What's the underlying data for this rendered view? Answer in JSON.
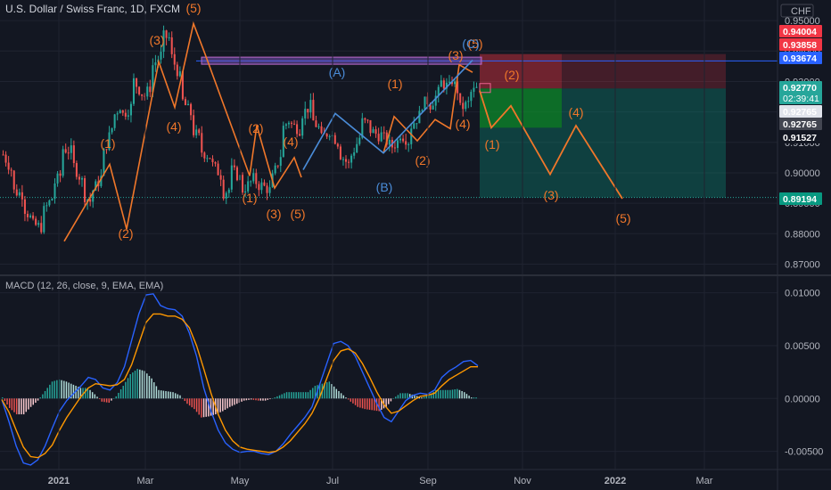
{
  "header": {
    "title": "U.S. Dollar / Swiss Franc, 1D, FXCM",
    "macd_title": "MACD (12, 26, close, 9, EMA, EMA)",
    "currency": "CHF"
  },
  "chart_data": [
    {
      "type": "candlestick",
      "title": "U.S. Dollar / Swiss Franc, 1D, FXCM",
      "ylim": [
        0.8675,
        0.9515
      ],
      "y_ticks": [
        "0.87000",
        "0.88000",
        "0.89000",
        "0.90000",
        "0.91000",
        "0.92000",
        "0.93000",
        "0.94000",
        "0.95000"
      ],
      "x_ticks": [
        "2021",
        "Mar",
        "May",
        "Jul",
        "Sep",
        "Nov",
        "2022",
        "Mar"
      ],
      "price_labels": [
        {
          "value": 0.94004,
          "text": "0.94004",
          "color": "#f23645"
        },
        {
          "value": 0.93858,
          "text": "0.93858",
          "color": "#f23645"
        },
        {
          "value": 0.93674,
          "text": "0.93674",
          "color": "#2962ff"
        },
        {
          "value": 0.9277,
          "text": "0.92770",
          "subtext": "02:39:41",
          "color": "#26a69a"
        },
        {
          "value": 0.92765,
          "text": "0.92765",
          "color": "#e0e3eb",
          "text_color": "#131722"
        },
        {
          "value": 0.92765,
          "text": "0.92765",
          "color": "#434651"
        },
        {
          "value": 0.91527,
          "text": "0.91527",
          "color": "#131722"
        },
        {
          "value": 0.89194,
          "text": "0.89194",
          "color": "#089981"
        }
      ],
      "price_path": [
        [
          0.906,
          0.9
        ],
        [
          0.894,
          0.893
        ],
        [
          0.889,
          0.884
        ],
        [
          0.883,
          0.882
        ],
        [
          0.887,
          0.892
        ],
        [
          0.896,
          0.9
        ],
        [
          0.908,
          0.907
        ],
        [
          0.903,
          0.897
        ],
        [
          0.893,
          0.89
        ],
        [
          0.894,
          0.899
        ],
        [
          0.905,
          0.915
        ],
        [
          0.918,
          0.923
        ],
        [
          0.919,
          0.922
        ],
        [
          0.931,
          0.926
        ],
        [
          0.924,
          0.929
        ],
        [
          0.935,
          0.939
        ],
        [
          0.945,
          0.944
        ],
        [
          0.938,
          0.93
        ],
        [
          0.924,
          0.919
        ],
        [
          0.914,
          0.911
        ],
        [
          0.907,
          0.905
        ],
        [
          0.903,
          0.899
        ],
        [
          0.893,
          0.895
        ],
        [
          0.901,
          0.898
        ],
        [
          0.894,
          0.897
        ],
        [
          0.899,
          0.895
        ],
        [
          0.896,
          0.894
        ],
        [
          0.897,
          0.906
        ],
        [
          0.914,
          0.918
        ],
        [
          0.916,
          0.914
        ],
        [
          0.919,
          0.922
        ],
        [
          0.918,
          0.914
        ],
        [
          0.911,
          0.914
        ],
        [
          0.913,
          0.909
        ],
        [
          0.906,
          0.902
        ],
        [
          0.905,
          0.912
        ],
        [
          0.917,
          0.916
        ],
        [
          0.914,
          0.912
        ],
        [
          0.913,
          0.909
        ],
        [
          0.908,
          0.911
        ],
        [
          0.913,
          0.91
        ],
        [
          0.915,
          0.919
        ],
        [
          0.922,
          0.924
        ],
        [
          0.922,
          0.927
        ],
        [
          0.93,
          0.928
        ],
        [
          0.932,
          0.926
        ],
        [
          0.921,
          0.923
        ],
        [
          0.926,
          0.928
        ]
      ],
      "wave_lines": {
        "orange": [
          [
            0.8775,
            0.9028
          ],
          [
            0.8815,
            0.9028
          ],
          [
            0.9365,
            0.9215
          ],
          [
            0.949,
            0.939
          ],
          [
            0.899,
            0.9155
          ],
          [
            0.895,
            0.905
          ],
          [
            0.9065,
            0.9185
          ],
          [
            0.9145,
            0.9175
          ]
        ]
      },
      "projection": {
        "labels": [
          "(1)",
          "(2)",
          "(3)",
          "(4)",
          "(5)"
        ],
        "values": [
          0.9148,
          0.922,
          0.8995,
          0.9155,
          0.8915
        ]
      },
      "zones": {
        "stop": {
          "from": 0.9277,
          "to": 0.939,
          "color": "#f23645"
        },
        "target": {
          "from": 0.8919,
          "to": 0.9277,
          "color": "#089981"
        },
        "resistance": {
          "from": 0.9368,
          "to": 0.938,
          "color": "#7e57c2"
        }
      },
      "annotations": {
        "orange": [
          "(5)",
          "(3)",
          "(4)",
          "(1)",
          "(2)",
          "(2)",
          "(1)",
          "(3)",
          "(5)",
          "(4)",
          "(1)",
          "(2)",
          "(3)",
          "(4)",
          "(5)"
        ],
        "blue": [
          "(A)",
          "(B)",
          "(C)"
        ]
      }
    },
    {
      "type": "line",
      "title": "MACD (12, 26, close, 9, EMA, EMA)",
      "ylim": [
        -0.0063,
        0.0109
      ],
      "y_ticks": [
        "0.01000",
        "0.00500",
        "0.00000",
        "-0.00500"
      ],
      "series": [
        {
          "color": "#2962ff",
          "values": [
            -0.0001,
            -0.0022,
            -0.0045,
            -0.0061,
            -0.0063,
            -0.0058,
            -0.0045,
            -0.0028,
            -0.0012,
            -0.0002,
            0.0005,
            0.0012,
            0.002,
            0.0018,
            0.001,
            0.0008,
            0.0015,
            0.003,
            0.0055,
            0.008,
            0.0098,
            0.0099,
            0.0088,
            0.0085,
            0.0084,
            0.0078,
            0.0062,
            0.004,
            0.001,
            -0.0012,
            -0.003,
            -0.0042,
            -0.0048,
            -0.0051,
            -0.005,
            -0.005,
            -0.0052,
            -0.0053,
            -0.005,
            -0.0043,
            -0.0034,
            -0.0026,
            -0.0018,
            -0.0008,
            0.0012,
            0.0032,
            0.0052,
            0.0054,
            0.005,
            0.004,
            0.0025,
            0.001,
            -0.0005,
            -0.0018,
            -0.0022,
            -0.0012,
            -0.0002,
            0.0003,
            0.0005,
            0.0004,
            0.0008,
            0.002,
            0.0026,
            0.003,
            0.0035,
            0.0036,
            0.0031
          ]
        },
        {
          "color": "#ff9800",
          "values": [
            -0.0001,
            -0.0013,
            -0.003,
            -0.0046,
            -0.0055,
            -0.0056,
            -0.0052,
            -0.0044,
            -0.003,
            -0.0018,
            -0.0008,
            0.0002,
            0.001,
            0.0014,
            0.0013,
            0.0012,
            0.0013,
            0.0018,
            0.0032,
            0.0052,
            0.0072,
            0.008,
            0.008,
            0.0078,
            0.0078,
            0.0075,
            0.0067,
            0.005,
            0.0028,
            0.0005,
            -0.0015,
            -0.003,
            -0.004,
            -0.0046,
            -0.0048,
            -0.0049,
            -0.005,
            -0.0051,
            -0.005,
            -0.0046,
            -0.004,
            -0.0032,
            -0.0024,
            -0.0014,
            0.0,
            0.0018,
            0.0036,
            0.0045,
            0.0047,
            0.0043,
            0.0033,
            0.002,
            0.0006,
            -0.0006,
            -0.0014,
            -0.0012,
            -0.0007,
            -0.0002,
            0.0002,
            0.0003,
            0.0005,
            0.0012,
            0.0018,
            0.0022,
            0.0026,
            0.003,
            0.003
          ]
        }
      ],
      "histogram": [
        0.0001,
        -0.0009,
        -0.0015,
        -0.0015,
        -0.0008,
        -0.0002,
        0.0007,
        0.0016,
        0.0018,
        0.0016,
        0.0013,
        0.001,
        0.001,
        0.0004,
        -0.0003,
        -0.0004,
        0.0002,
        0.0012,
        0.0023,
        0.0028,
        0.0026,
        0.0019,
        0.0008,
        0.0007,
        0.0006,
        0.0003,
        -0.0005,
        -0.001,
        -0.0018,
        -0.0017,
        -0.0015,
        -0.0012,
        -0.0008,
        -0.0005,
        -0.0002,
        -0.0001,
        -0.0002,
        -0.0002,
        0.0,
        0.0003,
        0.0006,
        0.0006,
        0.0006,
        0.0006,
        0.0012,
        0.0014,
        0.0016,
        0.0009,
        0.0003,
        -0.0003,
        -0.0008,
        -0.001,
        -0.0011,
        -0.0012,
        -0.0008,
        0.0,
        0.0005,
        0.0005,
        0.0003,
        0.0001,
        0.0003,
        0.0008,
        0.0008,
        0.0008,
        0.0009,
        0.0006,
        0.0001
      ]
    }
  ]
}
